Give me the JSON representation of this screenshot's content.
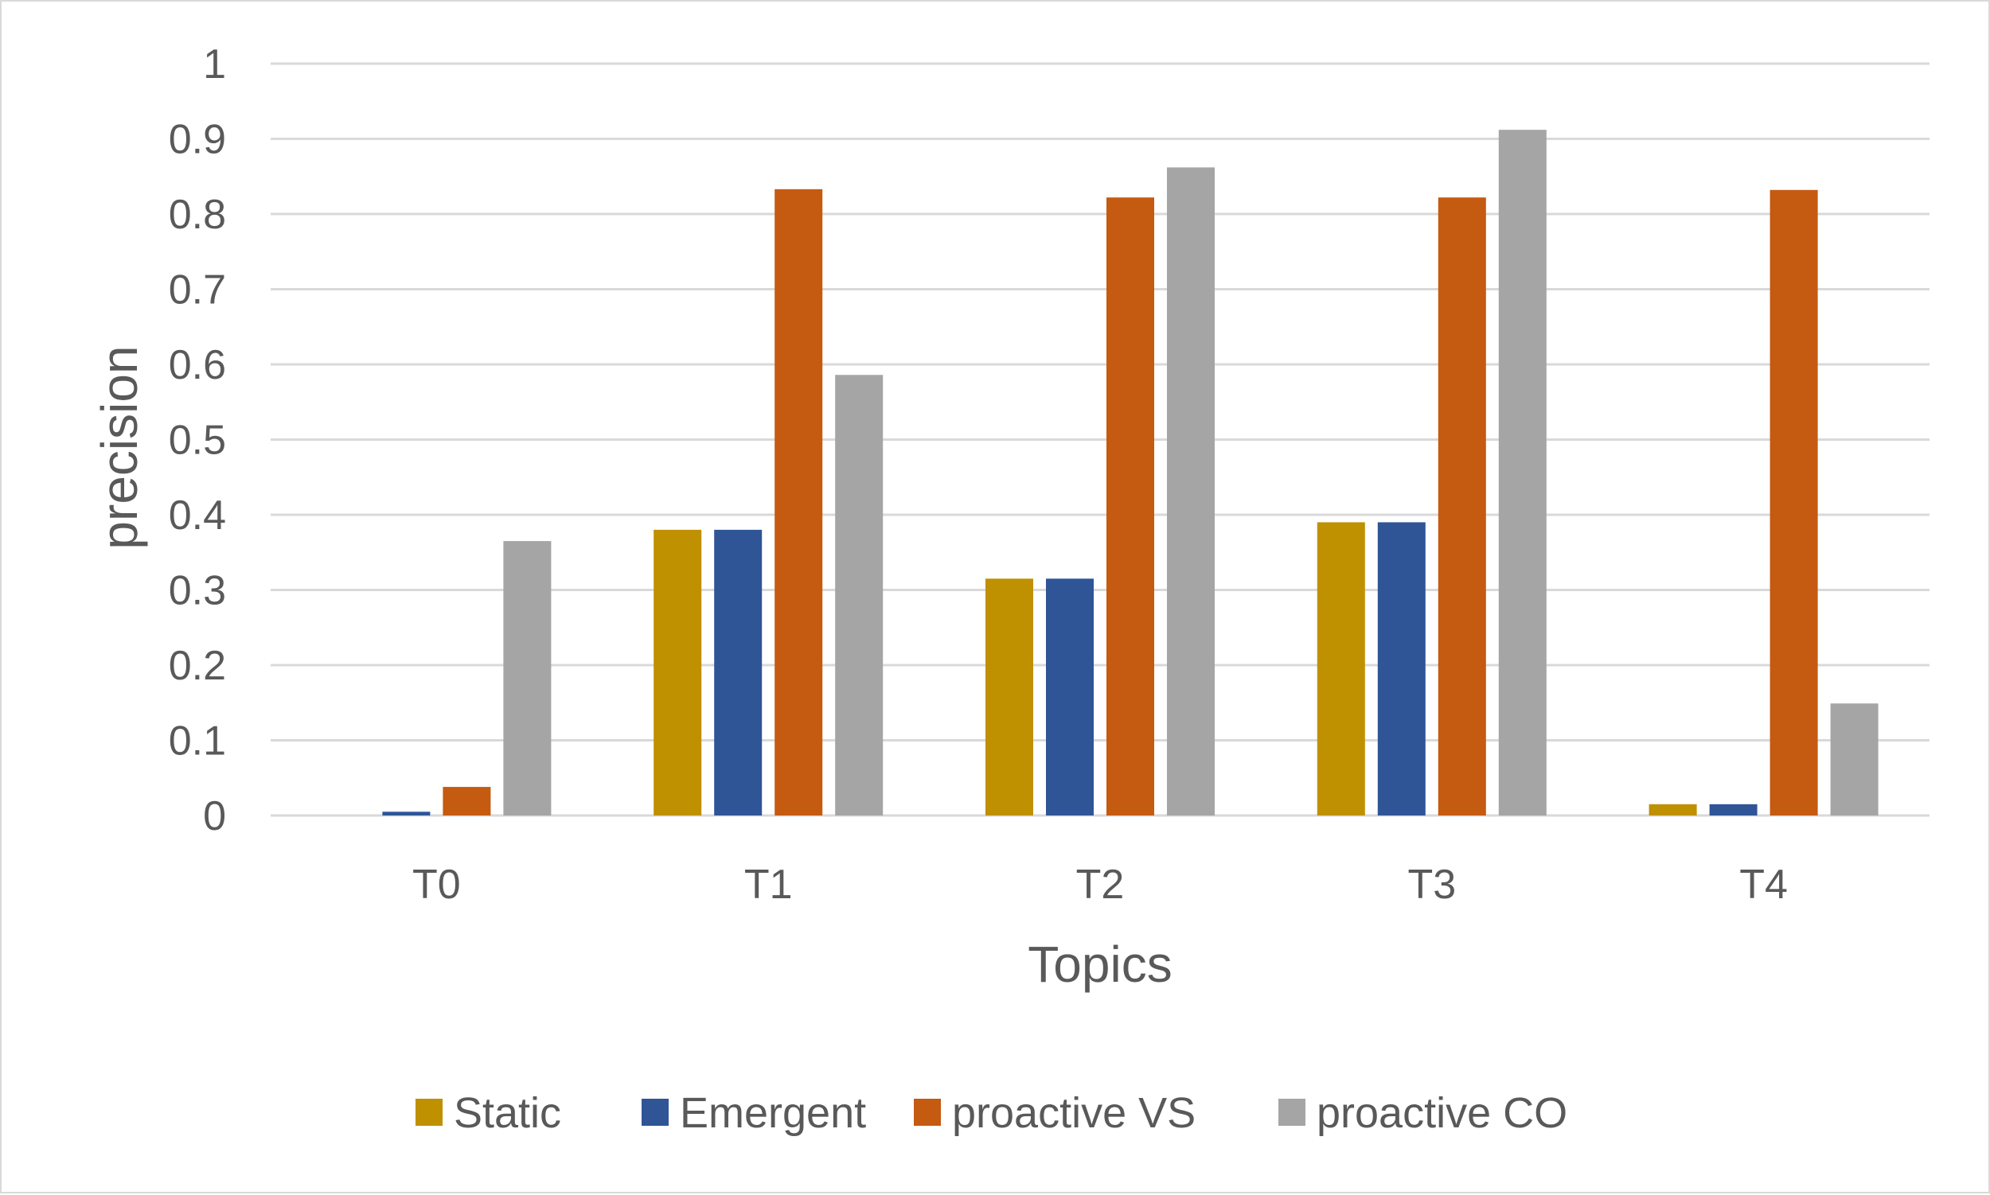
{
  "chart_data": {
    "type": "bar",
    "title": "",
    "xlabel": "Topics",
    "ylabel": "precision",
    "ylim": [
      0,
      1
    ],
    "ytick_step": 0.1,
    "yticks": [
      "0",
      "0.1",
      "0.2",
      "0.3",
      "0.4",
      "0.5",
      "0.6",
      "0.7",
      "0.8",
      "0.9",
      "1"
    ],
    "grid": true,
    "legend_position": "bottom",
    "categories": [
      "T0",
      "T1",
      "T2",
      "T3",
      "T4"
    ],
    "series": [
      {
        "name": "Static",
        "color": "#bf9000",
        "values": [
          0.0,
          0.38,
          0.315,
          0.39,
          0.015
        ]
      },
      {
        "name": "Emergent",
        "color": "#2f5597",
        "values": [
          0.005,
          0.38,
          0.315,
          0.39,
          0.015
        ]
      },
      {
        "name": "proactive VS",
        "color": "#c55a11",
        "values": [
          0.038,
          0.833,
          0.822,
          0.822,
          0.832
        ]
      },
      {
        "name": "proactive CO",
        "color": "#a5a5a5",
        "values": [
          0.365,
          0.586,
          0.862,
          0.912,
          0.149
        ]
      }
    ]
  }
}
